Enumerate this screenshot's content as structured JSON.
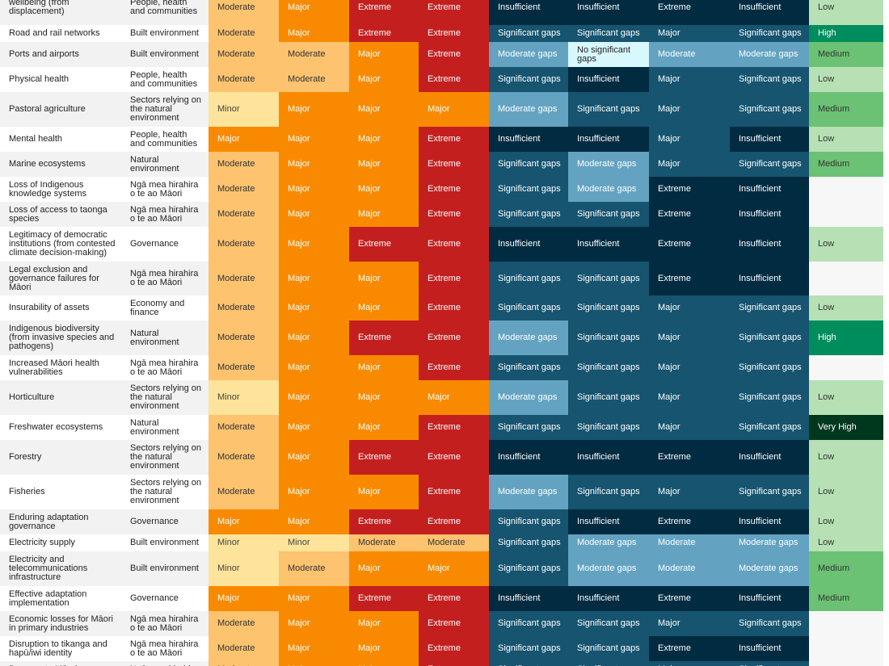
{
  "colors": {
    "Minor": [
      "#fde49a",
      "#444444"
    ],
    "Moderate": [
      "#fdc36f",
      "#333333"
    ],
    "Major": [
      "#f98a00",
      "#ffffff"
    ],
    "Extreme": [
      "#c41f1f",
      "#ffffff"
    ],
    "No significant gaps": [
      "#d8f8fd",
      "#222222"
    ],
    "Moderate gaps": [
      "#63a3c1",
      "#ffffff"
    ],
    "Significant gaps": [
      "#16546f",
      "#ffffff"
    ],
    "Insufficient": [
      "#002b41",
      "#ffffff"
    ],
    "Major_u": [
      "#16546f",
      "#ffffff"
    ],
    "Extreme_u": [
      "#002b41",
      "#ffffff"
    ],
    "Moderate_u": [
      "#63a3c1",
      "#ffffff"
    ],
    "Low": [
      "#b7e1b4",
      "#333333"
    ],
    "Medium": [
      "#6bc274",
      "#333333"
    ],
    "High": [
      "#008d5d",
      "#ffffff"
    ],
    "Very High": [
      "#00381e",
      "#ffffff"
    ]
  },
  "rows": [
    {
      "risk": "wellbeing (from displacement)",
      "domain": "People, health and communities",
      "r1": "Moderate",
      "r2": "Major",
      "r3": "Extreme",
      "r4": "Extreme",
      "a1": "Insufficient",
      "a2": "Insufficient",
      "urg": "Extreme",
      "a3": "Insufficient",
      "conf": "Low"
    },
    {
      "risk": "Road and rail networks",
      "domain": "Built environment",
      "r1": "Moderate",
      "r2": "Major",
      "r3": "Extreme",
      "r4": "Extreme",
      "a1": "Significant gaps",
      "a2": "Significant gaps",
      "urg": "Major",
      "a3": "Significant gaps",
      "conf": "High"
    },
    {
      "risk": "Ports and airports",
      "domain": "Built environment",
      "r1": "Moderate",
      "r2": "Moderate",
      "r3": "Major",
      "r4": "Extreme",
      "a1": "Moderate gaps",
      "a2": "No significant gaps",
      "urg": "Moderate",
      "a3": "Moderate gaps",
      "conf": "Medium"
    },
    {
      "risk": "Physical health",
      "domain": "People, health and communities",
      "r1": "Moderate",
      "r2": "Moderate",
      "r3": "Major",
      "r4": "Extreme",
      "a1": "Significant gaps",
      "a2": "Insufficient",
      "urg": "Major",
      "a3": "Significant gaps",
      "conf": "Low"
    },
    {
      "risk": "Pastoral agriculture",
      "domain": "Sectors relying on the natural environment",
      "r1": "Minor",
      "r2": "Major",
      "r3": "Major",
      "r4": "Major",
      "a1": "Moderate gaps",
      "a2": "Significant gaps",
      "urg": "Major",
      "a3": "Significant gaps",
      "conf": "Medium"
    },
    {
      "risk": "Mental health",
      "domain": "People, health and communities",
      "r1": "Major",
      "r2": "Major",
      "r3": "Major",
      "r4": "Extreme",
      "a1": "Insufficient",
      "a2": "Insufficient",
      "urg": "Major",
      "a3": "Insufficient",
      "conf": "Low"
    },
    {
      "risk": "Marine ecosystems",
      "domain": "Natural environment",
      "r1": "Moderate",
      "r2": "Major",
      "r3": "Major",
      "r4": "Extreme",
      "a1": "Significant gaps",
      "a2": "Moderate gaps",
      "urg": "Major",
      "a3": "Significant gaps",
      "conf": "Medium"
    },
    {
      "risk": "Loss of Indigenous knowledge systems",
      "domain": "Ngā mea hirahira o te ao Māori",
      "r1": "Moderate",
      "r2": "Major",
      "r3": "Major",
      "r4": "Extreme",
      "a1": "Significant gaps",
      "a2": "Moderate gaps",
      "urg": "Extreme",
      "a3": "Insufficient",
      "conf": ""
    },
    {
      "risk": "Loss of access to taonga species",
      "domain": "Ngā mea hirahira o te ao Māori",
      "r1": "Moderate",
      "r2": "Major",
      "r3": "Major",
      "r4": "Extreme",
      "a1": "Significant gaps",
      "a2": "Significant gaps",
      "urg": "Extreme",
      "a3": "Insufficient",
      "conf": ""
    },
    {
      "risk": "Legitimacy of democratic institutions (from contested climate decision-making)",
      "domain": "Governance",
      "r1": "Moderate",
      "r2": "Major",
      "r3": "Extreme",
      "r4": "Extreme",
      "a1": "Insufficient",
      "a2": "Insufficient",
      "urg": "Extreme",
      "a3": "Insufficient",
      "conf": "Low"
    },
    {
      "risk": "Legal exclusion and governance failures for Māori",
      "domain": "Ngā mea hirahira o te ao Māori",
      "r1": "Moderate",
      "r2": "Major",
      "r3": "Major",
      "r4": "Extreme",
      "a1": "Significant gaps",
      "a2": "Significant gaps",
      "urg": "Extreme",
      "a3": "Insufficient",
      "conf": ""
    },
    {
      "risk": "Insurability of assets",
      "domain": "Economy and finance",
      "r1": "Moderate",
      "r2": "Major",
      "r3": "Major",
      "r4": "Extreme",
      "a1": "Significant gaps",
      "a2": "Significant gaps",
      "urg": "Major",
      "a3": "Significant gaps",
      "conf": "Low"
    },
    {
      "risk": "Indigenous biodiversity (from invasive species and pathogens)",
      "domain": "Natural environment",
      "r1": "Moderate",
      "r2": "Major",
      "r3": "Extreme",
      "r4": "Extreme",
      "a1": "Moderate gaps",
      "a2": "Significant gaps",
      "urg": "Major",
      "a3": "Significant gaps",
      "conf": "High"
    },
    {
      "risk": "Increased Māori health vulnerabilities",
      "domain": "Ngā mea hirahira o te ao Māori",
      "r1": "Moderate",
      "r2": "Major",
      "r3": "Major",
      "r4": "Extreme",
      "a1": "Significant gaps",
      "a2": "Significant gaps",
      "urg": "Major",
      "a3": "Significant gaps",
      "conf": ""
    },
    {
      "risk": "Horticulture",
      "domain": "Sectors relying on the natural environment",
      "r1": "Minor",
      "r2": "Major",
      "r3": "Major",
      "r4": "Major",
      "a1": "Moderate gaps",
      "a2": "Significant gaps",
      "urg": "Major",
      "a3": "Significant gaps",
      "conf": "Low"
    },
    {
      "risk": "Freshwater ecosystems",
      "domain": "Natural environment",
      "r1": "Moderate",
      "r2": "Major",
      "r3": "Major",
      "r4": "Extreme",
      "a1": "Significant gaps",
      "a2": "Significant gaps",
      "urg": "Major",
      "a3": "Significant gaps",
      "conf": "Very High"
    },
    {
      "risk": "Forestry",
      "domain": "Sectors relying on the natural environment",
      "r1": "Moderate",
      "r2": "Major",
      "r3": "Extreme",
      "r4": "Extreme",
      "a1": "Insufficient",
      "a2": "Insufficient",
      "urg": "Extreme",
      "a3": "Insufficient",
      "conf": "Low"
    },
    {
      "risk": "Fisheries",
      "domain": "Sectors relying on the natural environment",
      "r1": "Moderate",
      "r2": "Major",
      "r3": "Major",
      "r4": "Extreme",
      "a1": "Moderate gaps",
      "a2": "Significant gaps",
      "urg": "Major",
      "a3": "Significant gaps",
      "conf": "Low"
    },
    {
      "risk": "Enduring adaptation governance",
      "domain": "Governance",
      "r1": "Major",
      "r2": "Major",
      "r3": "Extreme",
      "r4": "Extreme",
      "a1": "Significant gaps",
      "a2": "Insufficient",
      "urg": "Extreme",
      "a3": "Insufficient",
      "conf": "Low"
    },
    {
      "risk": "Electricity supply",
      "domain": "Built environment",
      "r1": "Minor",
      "r2": "Minor",
      "r3": "Moderate",
      "r4": "Moderate",
      "a1": "Significant gaps",
      "a2": "Moderate gaps",
      "urg": "Moderate",
      "a3": "Moderate gaps",
      "conf": "Low"
    },
    {
      "risk": "Electricity and telecommunications infrastructure",
      "domain": "Built environment",
      "r1": "Minor",
      "r2": "Moderate",
      "r3": "Major",
      "r4": "Major",
      "a1": "Significant gaps",
      "a2": "Moderate gaps",
      "urg": "Moderate",
      "a3": "Moderate gaps",
      "conf": "Medium"
    },
    {
      "risk": "Effective adaptation implementation",
      "domain": "Governance",
      "r1": "Major",
      "r2": "Major",
      "r3": "Extreme",
      "r4": "Extreme",
      "a1": "Insufficient",
      "a2": "Insufficient",
      "urg": "Extreme",
      "a3": "Insufficient",
      "conf": "Medium"
    },
    {
      "risk": "Economic losses for Māori in primary industries",
      "domain": "Ngā mea hirahira o te ao Māori",
      "r1": "Moderate",
      "r2": "Major",
      "r3": "Major",
      "r4": "Extreme",
      "a1": "Significant gaps",
      "a2": "Significant gaps",
      "urg": "Major",
      "a3": "Significant gaps",
      "conf": ""
    },
    {
      "risk": "Disruption to tikanga and hapū/iwi identity",
      "domain": "Ngā mea hirahira o te ao Māori",
      "r1": "Moderate",
      "r2": "Major",
      "r3": "Major",
      "r4": "Extreme",
      "a1": "Significant gaps",
      "a2": "Significant gaps",
      "urg": "Extreme",
      "a3": "Insufficient",
      "conf": ""
    },
    {
      "risk": "Damage to Māori",
      "domain": "Ngā mea hirahira",
      "r1": "Moderate",
      "r2": "Major",
      "r3": "Major",
      "r4": "Extreme",
      "a1": "Significant gaps",
      "a2": "Significant gaps",
      "urg": "Major",
      "a3": "Significant gaps",
      "conf": ""
    }
  ]
}
